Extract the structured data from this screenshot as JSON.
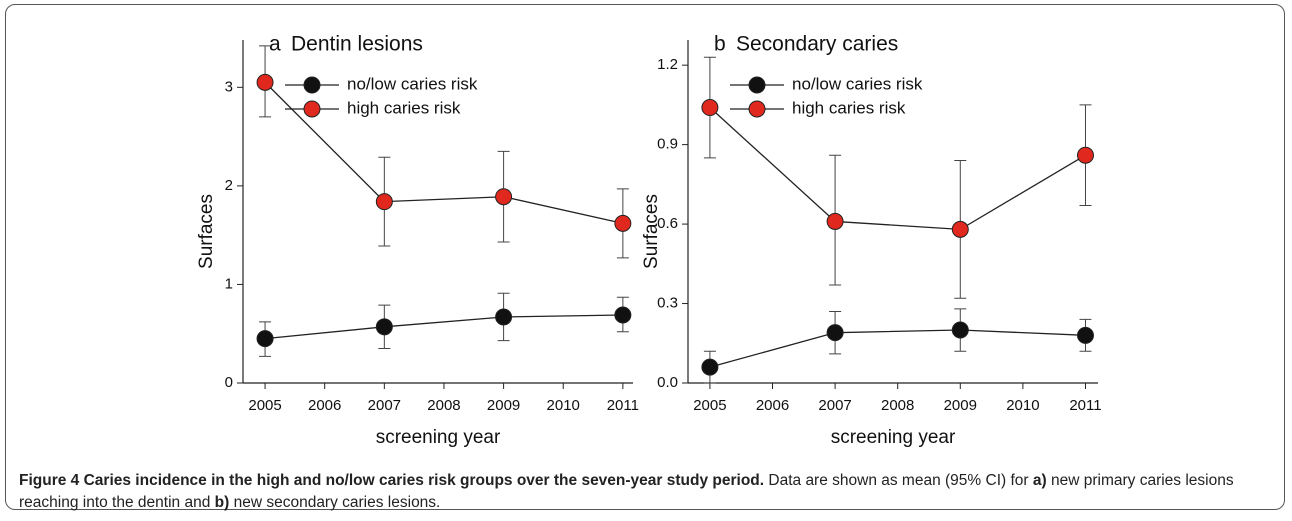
{
  "chart_data": [
    {
      "type": "line",
      "panel": "a",
      "title": "Dentin lesions",
      "x_label": "screening year",
      "y_label": "Surfaces",
      "x": [
        2005,
        2007,
        2009,
        2011
      ],
      "series": [
        {
          "name": "no/low caries risk",
          "color": "#111111",
          "values": [
            0.45,
            0.57,
            0.67,
            0.69
          ],
          "lower": [
            0.27,
            0.35,
            0.43,
            0.52
          ],
          "upper": [
            0.62,
            0.79,
            0.91,
            0.87
          ]
        },
        {
          "name": "high caries risk",
          "color": "#e0281e",
          "values": [
            3.05,
            1.84,
            1.89,
            1.62
          ],
          "lower": [
            2.7,
            1.39,
            1.43,
            1.27
          ],
          "upper": [
            3.42,
            2.29,
            2.35,
            1.97
          ]
        }
      ],
      "xlim": [
        2004.63,
        2011.17
      ],
      "xticks": [
        2005,
        2006,
        2007,
        2008,
        2009,
        2010,
        2011
      ],
      "ylim": [
        0,
        3.48
      ],
      "yticks": [
        0,
        1,
        2,
        3
      ],
      "legend": "upper center",
      "grid": false
    },
    {
      "type": "line",
      "panel": "b",
      "title": "Secondary caries",
      "x_label": "screening year",
      "y_label": "Surfaces",
      "x": [
        2005,
        2007,
        2009,
        2011
      ],
      "series": [
        {
          "name": "no/low caries risk",
          "color": "#111111",
          "values": [
            0.06,
            0.19,
            0.2,
            0.18
          ],
          "lower": [
            0.0,
            0.11,
            0.12,
            0.12
          ],
          "upper": [
            0.12,
            0.27,
            0.28,
            0.24
          ]
        },
        {
          "name": "high caries risk",
          "color": "#e0281e",
          "values": [
            1.04,
            0.61,
            0.58,
            0.86
          ],
          "lower": [
            0.85,
            0.37,
            0.32,
            0.67
          ],
          "upper": [
            1.23,
            0.86,
            0.84,
            1.05
          ]
        }
      ],
      "xlim": [
        2004.65,
        2011.2
      ],
      "xticks": [
        2005,
        2006,
        2007,
        2008,
        2009,
        2010,
        2011
      ],
      "ylim": [
        0,
        1.295
      ],
      "yticks": [
        {
          "value": 0,
          "label": "0.0"
        },
        0.3,
        0.6,
        0.9,
        1.2
      ],
      "legend": "upper center",
      "grid": false
    }
  ],
  "caption": {
    "parts": [
      "Figure 4 Caries incidence in the high and no/low caries risk groups over the seven-year study period.",
      "Data are shown as mean (95% CI) for",
      "a)",
      "new primary caries lesions reaching into the dentin and",
      "b)",
      "new secondary caries lesions."
    ]
  }
}
